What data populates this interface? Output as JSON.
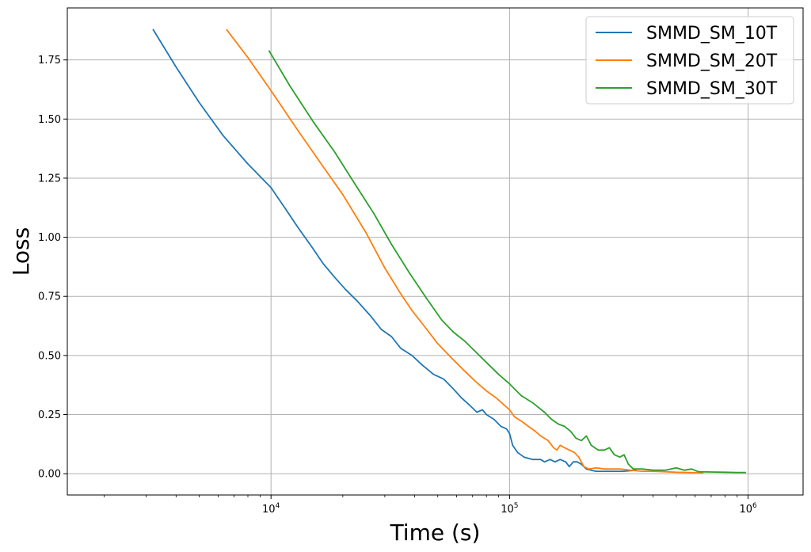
{
  "chart_data": {
    "type": "line",
    "title": "",
    "xlabel": "Time (s)",
    "ylabel": "Loss",
    "xscale": "log",
    "xlim": [
      1400,
      1700000
    ],
    "ylim": [
      -0.09,
      1.97
    ],
    "grid": true,
    "legend_position": "top-right",
    "x_major_ticks": [
      {
        "value": 10000,
        "base": "10",
        "exp": "4"
      },
      {
        "value": 100000,
        "base": "10",
        "exp": "5"
      },
      {
        "value": 1000000,
        "base": "10",
        "exp": "6"
      }
    ],
    "y_ticks": [
      {
        "value": 0.0,
        "label": "0.00"
      },
      {
        "value": 0.25,
        "label": "0.25"
      },
      {
        "value": 0.5,
        "label": "0.50"
      },
      {
        "value": 0.75,
        "label": "0.75"
      },
      {
        "value": 1.0,
        "label": "1.00"
      },
      {
        "value": 1.25,
        "label": "1.25"
      },
      {
        "value": 1.5,
        "label": "1.50"
      },
      {
        "value": 1.75,
        "label": "1.75"
      }
    ],
    "series": [
      {
        "name": "SMMD_SM_10T",
        "color": "#1f77b4",
        "points": [
          [
            3200,
            1.88
          ],
          [
            4000,
            1.72
          ],
          [
            5000,
            1.57
          ],
          [
            6300,
            1.43
          ],
          [
            8000,
            1.31
          ],
          [
            10000,
            1.21
          ],
          [
            11500,
            1.12
          ],
          [
            13000,
            1.04
          ],
          [
            14800,
            0.96
          ],
          [
            16500,
            0.89
          ],
          [
            18500,
            0.83
          ],
          [
            20500,
            0.78
          ],
          [
            23000,
            0.73
          ],
          [
            26000,
            0.67
          ],
          [
            29000,
            0.61
          ],
          [
            32000,
            0.58
          ],
          [
            35000,
            0.53
          ],
          [
            39000,
            0.5
          ],
          [
            43000,
            0.46
          ],
          [
            48000,
            0.42
          ],
          [
            53000,
            0.4
          ],
          [
            58000,
            0.36
          ],
          [
            63000,
            0.32
          ],
          [
            68000,
            0.29
          ],
          [
            73000,
            0.26
          ],
          [
            77000,
            0.27
          ],
          [
            80000,
            0.25
          ],
          [
            86000,
            0.23
          ],
          [
            92000,
            0.2
          ],
          [
            97000,
            0.19
          ],
          [
            100000,
            0.17
          ],
          [
            103000,
            0.12
          ],
          [
            108000,
            0.09
          ],
          [
            115000,
            0.07
          ],
          [
            125000,
            0.06
          ],
          [
            135000,
            0.06
          ],
          [
            140000,
            0.05
          ],
          [
            148000,
            0.06
          ],
          [
            155000,
            0.05
          ],
          [
            163000,
            0.06
          ],
          [
            172000,
            0.05
          ],
          [
            178000,
            0.03
          ],
          [
            185000,
            0.05
          ],
          [
            192000,
            0.05
          ],
          [
            200000,
            0.04
          ],
          [
            210000,
            0.02
          ],
          [
            230000,
            0.01
          ],
          [
            260000,
            0.01
          ],
          [
            300000,
            0.01
          ],
          [
            340000,
            0.015
          ]
        ]
      },
      {
        "name": "SMMD_SM_20T",
        "color": "#ff7f0e",
        "points": [
          [
            6500,
            1.88
          ],
          [
            8000,
            1.76
          ],
          [
            10000,
            1.62
          ],
          [
            13000,
            1.45
          ],
          [
            16500,
            1.3
          ],
          [
            20000,
            1.18
          ],
          [
            25000,
            1.02
          ],
          [
            30000,
            0.87
          ],
          [
            35000,
            0.76
          ],
          [
            39000,
            0.69
          ],
          [
            45000,
            0.61
          ],
          [
            50000,
            0.55
          ],
          [
            57000,
            0.49
          ],
          [
            64000,
            0.44
          ],
          [
            72000,
            0.39
          ],
          [
            80000,
            0.35
          ],
          [
            88000,
            0.32
          ],
          [
            95000,
            0.29
          ],
          [
            100000,
            0.27
          ],
          [
            105000,
            0.24
          ],
          [
            113000,
            0.22
          ],
          [
            120000,
            0.2
          ],
          [
            128000,
            0.18
          ],
          [
            135000,
            0.16
          ],
          [
            145000,
            0.14
          ],
          [
            153000,
            0.11
          ],
          [
            158000,
            0.1
          ],
          [
            163000,
            0.12
          ],
          [
            170000,
            0.11
          ],
          [
            178000,
            0.1
          ],
          [
            187000,
            0.09
          ],
          [
            195000,
            0.07
          ],
          [
            205000,
            0.03
          ],
          [
            215000,
            0.02
          ],
          [
            230000,
            0.025
          ],
          [
            250000,
            0.02
          ],
          [
            270000,
            0.02
          ],
          [
            290000,
            0.02
          ],
          [
            320000,
            0.015
          ],
          [
            360000,
            0.01
          ],
          [
            400000,
            0.01
          ],
          [
            450000,
            0.008
          ],
          [
            500000,
            0.006
          ],
          [
            560000,
            0.005
          ],
          [
            650000,
            0.004
          ]
        ]
      },
      {
        "name": "SMMD_SM_30T",
        "color": "#2ca02c",
        "points": [
          [
            9800,
            1.79
          ],
          [
            12000,
            1.64
          ],
          [
            15000,
            1.49
          ],
          [
            18500,
            1.36
          ],
          [
            22000,
            1.24
          ],
          [
            27000,
            1.1
          ],
          [
            32000,
            0.97
          ],
          [
            38000,
            0.85
          ],
          [
            45000,
            0.74
          ],
          [
            52000,
            0.65
          ],
          [
            58000,
            0.6
          ],
          [
            65000,
            0.56
          ],
          [
            73000,
            0.51
          ],
          [
            82000,
            0.46
          ],
          [
            90000,
            0.42
          ],
          [
            100000,
            0.38
          ],
          [
            112000,
            0.33
          ],
          [
            125000,
            0.3
          ],
          [
            140000,
            0.26
          ],
          [
            150000,
            0.23
          ],
          [
            160000,
            0.21
          ],
          [
            170000,
            0.2
          ],
          [
            180000,
            0.18
          ],
          [
            190000,
            0.15
          ],
          [
            200000,
            0.14
          ],
          [
            210000,
            0.16
          ],
          [
            220000,
            0.12
          ],
          [
            235000,
            0.1
          ],
          [
            250000,
            0.1
          ],
          [
            262000,
            0.11
          ],
          [
            275000,
            0.08
          ],
          [
            290000,
            0.07
          ],
          [
            302000,
            0.08
          ],
          [
            315000,
            0.04
          ],
          [
            330000,
            0.02
          ],
          [
            360000,
            0.02
          ],
          [
            400000,
            0.015
          ],
          [
            450000,
            0.015
          ],
          [
            500000,
            0.025
          ],
          [
            540000,
            0.015
          ],
          [
            580000,
            0.02
          ],
          [
            620000,
            0.008
          ],
          [
            700000,
            0.007
          ],
          [
            800000,
            0.006
          ],
          [
            900000,
            0.005
          ],
          [
            980000,
            0.005
          ]
        ]
      }
    ]
  }
}
